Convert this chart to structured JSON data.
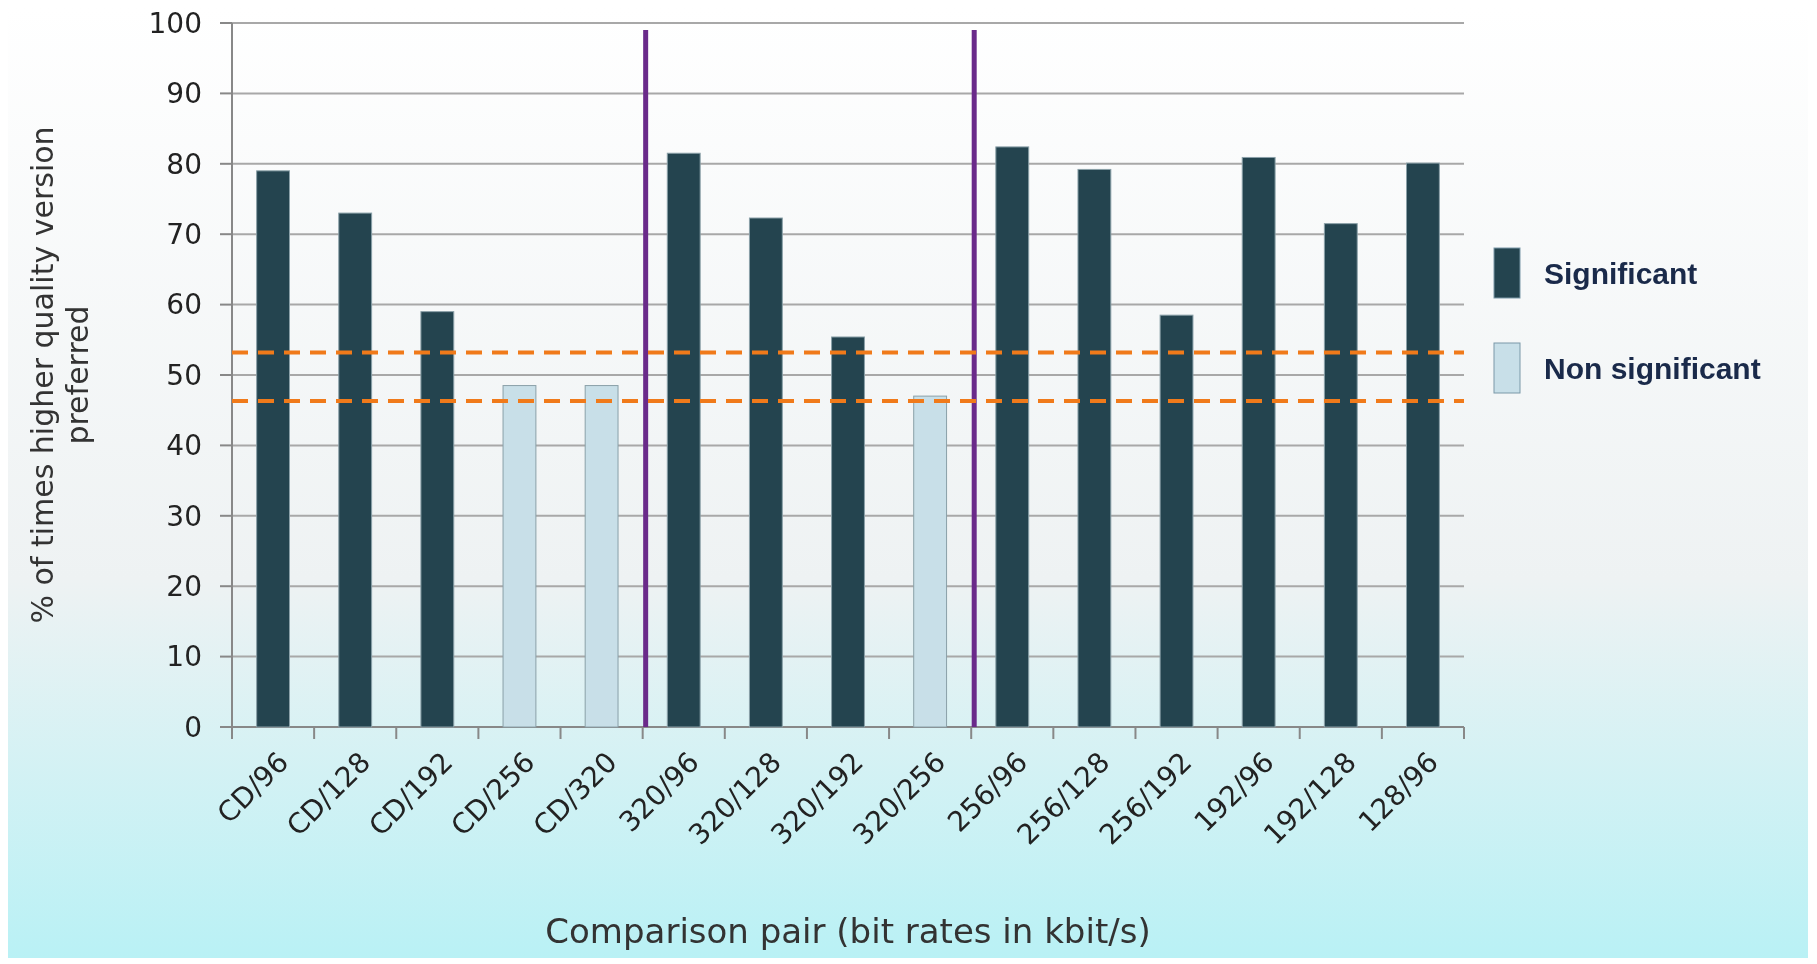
{
  "chart_data": {
    "type": "bar",
    "xlabel": "Comparison pair (bit rates in kbit/s)",
    "ylabel": "% of times higher quality version preferred",
    "categories": [
      "CD/96",
      "CD/128",
      "CD/192",
      "CD/256",
      "CD/320",
      "320/96",
      "320/128",
      "320/192",
      "320/256",
      "256/96",
      "256/128",
      "256/192",
      "192/96",
      "192/128",
      "128/96"
    ],
    "series": [
      {
        "name": "Significant",
        "color": "#24444f",
        "values": [
          79,
          73,
          59,
          null,
          null,
          81.5,
          72.3,
          55.4,
          null,
          82.4,
          79.2,
          58.5,
          80.9,
          71.5,
          80.1
        ]
      },
      {
        "name": "Non significant",
        "color": "#c8dfe8",
        "values": [
          null,
          null,
          null,
          48.5,
          48.5,
          null,
          null,
          null,
          47,
          null,
          null,
          null,
          null,
          null,
          null
        ]
      }
    ],
    "ylim": [
      0,
      100
    ],
    "yticks": [
      0,
      10,
      20,
      30,
      40,
      50,
      60,
      70,
      80,
      90,
      100
    ],
    "grid": "y",
    "legend": "right",
    "ref_lines": [
      {
        "axis": "y",
        "value": 53.2,
        "color": "#f07a1a",
        "line_style": "dashed"
      },
      {
        "axis": "y",
        "value": 46.3,
        "color": "#f07a1a",
        "line_style": "dashed"
      }
    ]
  }
}
